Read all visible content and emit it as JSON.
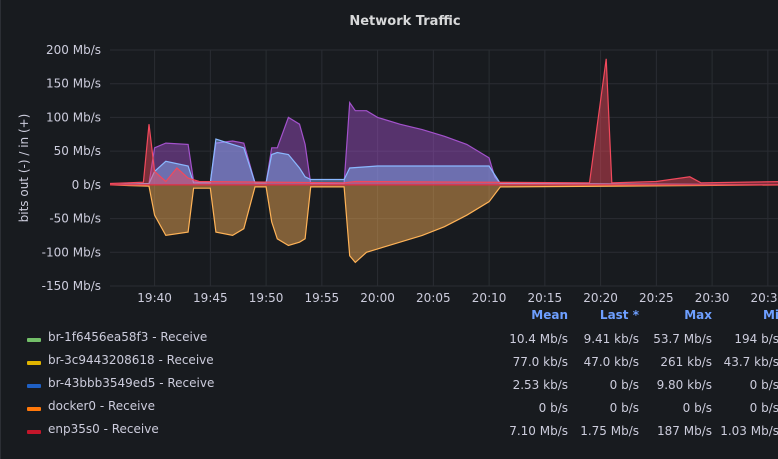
{
  "panel": {
    "title": "Network Traffic"
  },
  "legend": {
    "columns": [
      "Mean",
      "Last *",
      "Max",
      "Mi"
    ],
    "rows": [
      {
        "name": "br-1f6456ea58f3 - Receive",
        "color": "#73bf69",
        "values": [
          "10.4 Mb/s",
          "9.41 kb/s",
          "53.7 Mb/s",
          "194 b/s"
        ]
      },
      {
        "name": "br-3c9443208618 - Receive",
        "color": "#e0b400",
        "values": [
          "77.0 kb/s",
          "47.0 kb/s",
          "261 kb/s",
          "43.7 kb/s"
        ]
      },
      {
        "name": "br-43bbb3549ed5 - Receive",
        "color": "#1f60c4",
        "values": [
          "2.53 kb/s",
          "0 b/s",
          "9.80 kb/s",
          "0 b/s"
        ]
      },
      {
        "name": "docker0 - Receive",
        "color": "#ff780a",
        "values": [
          "0 b/s",
          "0 b/s",
          "0 b/s",
          "0 b/s"
        ]
      },
      {
        "name": "enp35s0 - Receive",
        "color": "#c4162a",
        "values": [
          "7.10 Mb/s",
          "1.75 Mb/s",
          "187 Mb/s",
          "1.03 Mb/s"
        ]
      }
    ]
  },
  "chart_data": {
    "type": "area",
    "title": "Network Traffic",
    "ylabel": "bits out (-) / in (+)",
    "ylim": [
      -150,
      200
    ],
    "y_ticks": [
      200,
      150,
      100,
      50,
      0,
      -50,
      -100,
      -150
    ],
    "y_tick_labels": [
      "200 Mb/s",
      "150 Mb/s",
      "100 Mb/s",
      "50 Mb/s",
      "0 b/s",
      "-50 Mb/s",
      "-100 Mb/s",
      "-150 Mb/s"
    ],
    "x_tick_labels": [
      "19:40",
      "19:45",
      "19:50",
      "19:55",
      "20:00",
      "20:05",
      "20:10",
      "20:15",
      "20:20",
      "20:25",
      "20:30",
      "20:35"
    ],
    "grid": true,
    "series": [
      {
        "name": "in (purple)",
        "color": "#a352cc",
        "points": [
          [
            "19:36",
            0
          ],
          [
            "19:39.5",
            2
          ],
          [
            "19:40",
            55
          ],
          [
            "19:41",
            62
          ],
          [
            "19:43",
            60
          ],
          [
            "19:43.5",
            5
          ],
          [
            "19:45",
            3
          ],
          [
            "19:45.5",
            62
          ],
          [
            "19:47",
            65
          ],
          [
            "19:48",
            62
          ],
          [
            "19:49",
            3
          ],
          [
            "19:50",
            3
          ],
          [
            "19:50.5",
            55
          ],
          [
            "19:51",
            55
          ],
          [
            "19:52",
            100
          ],
          [
            "19:53",
            90
          ],
          [
            "19:53.5",
            60
          ],
          [
            "19:54",
            2
          ],
          [
            "19:57",
            2
          ],
          [
            "19:57.5",
            122
          ],
          [
            "19:58",
            110
          ],
          [
            "19:59",
            110
          ],
          [
            "20:00",
            100
          ],
          [
            "20:02",
            90
          ],
          [
            "20:04",
            82
          ],
          [
            "20:06",
            72
          ],
          [
            "20:08",
            60
          ],
          [
            "20:10",
            40
          ],
          [
            "20:10.5",
            12
          ],
          [
            "20:11",
            2
          ],
          [
            "20:37",
            0
          ]
        ]
      },
      {
        "name": "in (blue)",
        "color": "#8ab8ff",
        "points": [
          [
            "19:36",
            0
          ],
          [
            "19:39.5",
            2
          ],
          [
            "19:40",
            20
          ],
          [
            "19:41",
            35
          ],
          [
            "19:43",
            28
          ],
          [
            "19:43.5",
            3
          ],
          [
            "19:45",
            3
          ],
          [
            "19:45.5",
            68
          ],
          [
            "19:47",
            60
          ],
          [
            "19:48",
            55
          ],
          [
            "19:49",
            3
          ],
          [
            "19:50",
            3
          ],
          [
            "19:50.5",
            45
          ],
          [
            "19:51",
            48
          ],
          [
            "19:52",
            45
          ],
          [
            "19:53",
            25
          ],
          [
            "19:53.5",
            12
          ],
          [
            "19:54",
            8
          ],
          [
            "19:57",
            8
          ],
          [
            "19:57.5",
            25
          ],
          [
            "20:00",
            28
          ],
          [
            "20:05",
            28
          ],
          [
            "20:10",
            28
          ],
          [
            "20:11",
            2
          ],
          [
            "20:37",
            0
          ]
        ]
      },
      {
        "name": "in (red)",
        "color": "#f2495c",
        "points": [
          [
            "19:36",
            2
          ],
          [
            "19:39",
            4
          ],
          [
            "19:39.5",
            90
          ],
          [
            "19:40",
            20
          ],
          [
            "19:41",
            5
          ],
          [
            "19:42",
            25
          ],
          [
            "19:43",
            10
          ],
          [
            "19:44",
            5
          ],
          [
            "19:57",
            3
          ],
          [
            "19:58",
            5
          ],
          [
            "20:19",
            3
          ],
          [
            "20:20.5",
            187
          ],
          [
            "20:21",
            3
          ],
          [
            "20:25",
            5
          ],
          [
            "20:28",
            12
          ],
          [
            "20:29",
            3
          ],
          [
            "20:37",
            5
          ]
        ]
      },
      {
        "name": "out (orange)",
        "color": "#ffb357",
        "points": [
          [
            "19:36",
            0
          ],
          [
            "19:39.5",
            -2
          ],
          [
            "19:40",
            -45
          ],
          [
            "19:41",
            -75
          ],
          [
            "19:43",
            -70
          ],
          [
            "19:43.5",
            -5
          ],
          [
            "19:45",
            -5
          ],
          [
            "19:45.5",
            -70
          ],
          [
            "19:47",
            -75
          ],
          [
            "19:48",
            -65
          ],
          [
            "19:49",
            -3
          ],
          [
            "19:50",
            -3
          ],
          [
            "19:50.5",
            -55
          ],
          [
            "19:51",
            -80
          ],
          [
            "19:52",
            -90
          ],
          [
            "19:53",
            -85
          ],
          [
            "19:53.5",
            -80
          ],
          [
            "19:54",
            -3
          ],
          [
            "19:57",
            -3
          ],
          [
            "19:57.5",
            -105
          ],
          [
            "19:58",
            -115
          ],
          [
            "19:59",
            -100
          ],
          [
            "20:00",
            -95
          ],
          [
            "20:02",
            -85
          ],
          [
            "20:04",
            -75
          ],
          [
            "20:06",
            -62
          ],
          [
            "20:08",
            -45
          ],
          [
            "20:10",
            -25
          ],
          [
            "20:11",
            -3
          ],
          [
            "20:37",
            0
          ]
        ]
      }
    ]
  }
}
